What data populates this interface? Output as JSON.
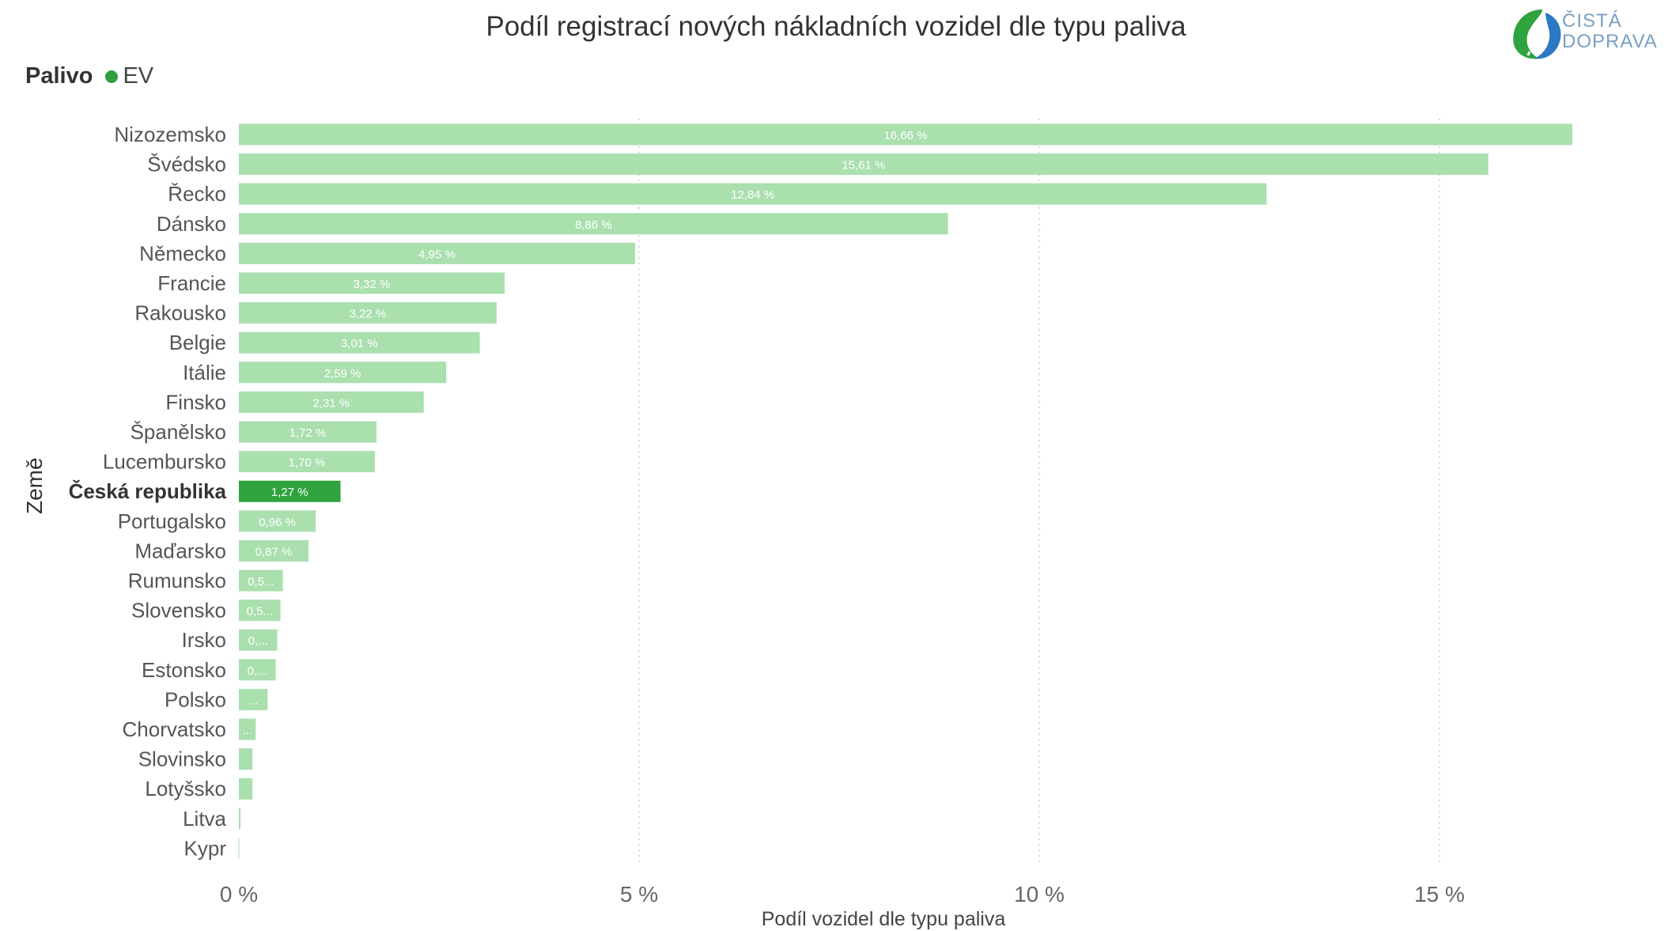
{
  "title": "Podíl registrací nových nákladních vozidel dle typu paliva",
  "logo": {
    "line1": "ČISTÁ",
    "line2": "DOPRAVA"
  },
  "legend": {
    "title": "Palivo",
    "entries": [
      {
        "label": "EV",
        "color": "#2e9e3e"
      }
    ]
  },
  "colors": {
    "bar": "#aadfae",
    "highlight": "#2ea33e",
    "grid": "#d9d9d9"
  },
  "chart_data": {
    "type": "bar",
    "orientation": "horizontal",
    "title": "Podíl registrací nových nákladních vozidel dle typu paliva",
    "ylabel": "Země",
    "xlabel": "Podíl vozidel dle typu paliva",
    "xlim": [
      0,
      17
    ],
    "xticks": [
      {
        "value": 0,
        "label": "0 %"
      },
      {
        "value": 5,
        "label": "5 %"
      },
      {
        "value": 10,
        "label": "10 %"
      },
      {
        "value": 15,
        "label": "15 %"
      }
    ],
    "highlight": "Česká republika",
    "categories": [
      "Nizozemsko",
      "Švédsko",
      "Řecko",
      "Dánsko",
      "Německo",
      "Francie",
      "Rakousko",
      "Belgie",
      "Itálie",
      "Finsko",
      "Španělsko",
      "Lucembursko",
      "Česká republika",
      "Portugalsko",
      "Maďarsko",
      "Rumunsko",
      "Slovensko",
      "Irsko",
      "Estonsko",
      "Polsko",
      "Chorvatsko",
      "Slovinsko",
      "Lotyšsko",
      "Litva",
      "Kypr"
    ],
    "values": [
      16.66,
      15.61,
      12.84,
      8.86,
      4.95,
      3.32,
      3.22,
      3.01,
      2.59,
      2.31,
      1.72,
      1.7,
      1.27,
      0.96,
      0.87,
      0.55,
      0.52,
      0.48,
      0.46,
      0.36,
      0.21,
      0.17,
      0.17,
      0.02,
      0.0
    ],
    "data_labels": [
      "16,66 %",
      "15,61 %",
      "12,84 %",
      "8,86 %",
      "4,95 %",
      "3,32 %",
      "3,22 %",
      "3,01 %",
      "2,59 %",
      "2,31 %",
      "1,72 %",
      "1,70 %",
      "1,27 %",
      "0,96 %",
      "0,87 %",
      "0,5...",
      "0,5...",
      "0,...",
      "0,...",
      "...",
      "...",
      "",
      "",
      "",
      ""
    ]
  }
}
